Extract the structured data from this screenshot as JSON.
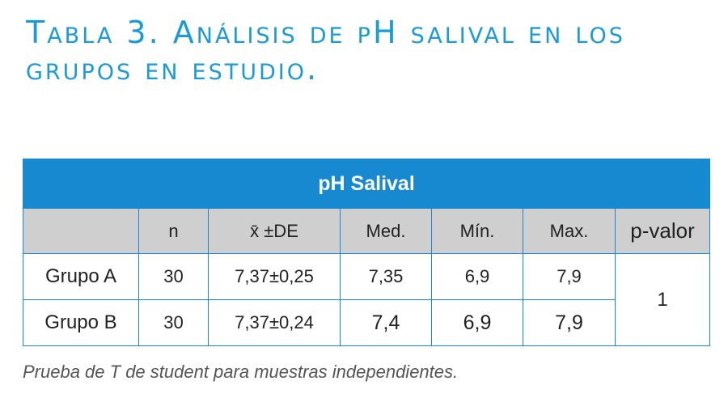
{
  "title": "Tabla 3.  Análisis de pH salival en los grupos en estudio.",
  "table": {
    "band": "pH Salival",
    "headers": [
      "",
      "n",
      "x̄ ±DE",
      "Med.",
      "Mín.",
      "Max.",
      "p-valor"
    ],
    "rows": [
      {
        "group": "Grupo A",
        "n": "30",
        "mean_sd": "7,37±0,25",
        "med": "7,35",
        "min": "6,9",
        "max": "7,9"
      },
      {
        "group": "Grupo B",
        "n": "30",
        "mean_sd": "7,37±0,24",
        "med": "7,4",
        "min": "6,9",
        "max": "7,9"
      }
    ],
    "p_value": "1"
  },
  "note": "Prueba de T de student para muestras independientes."
}
